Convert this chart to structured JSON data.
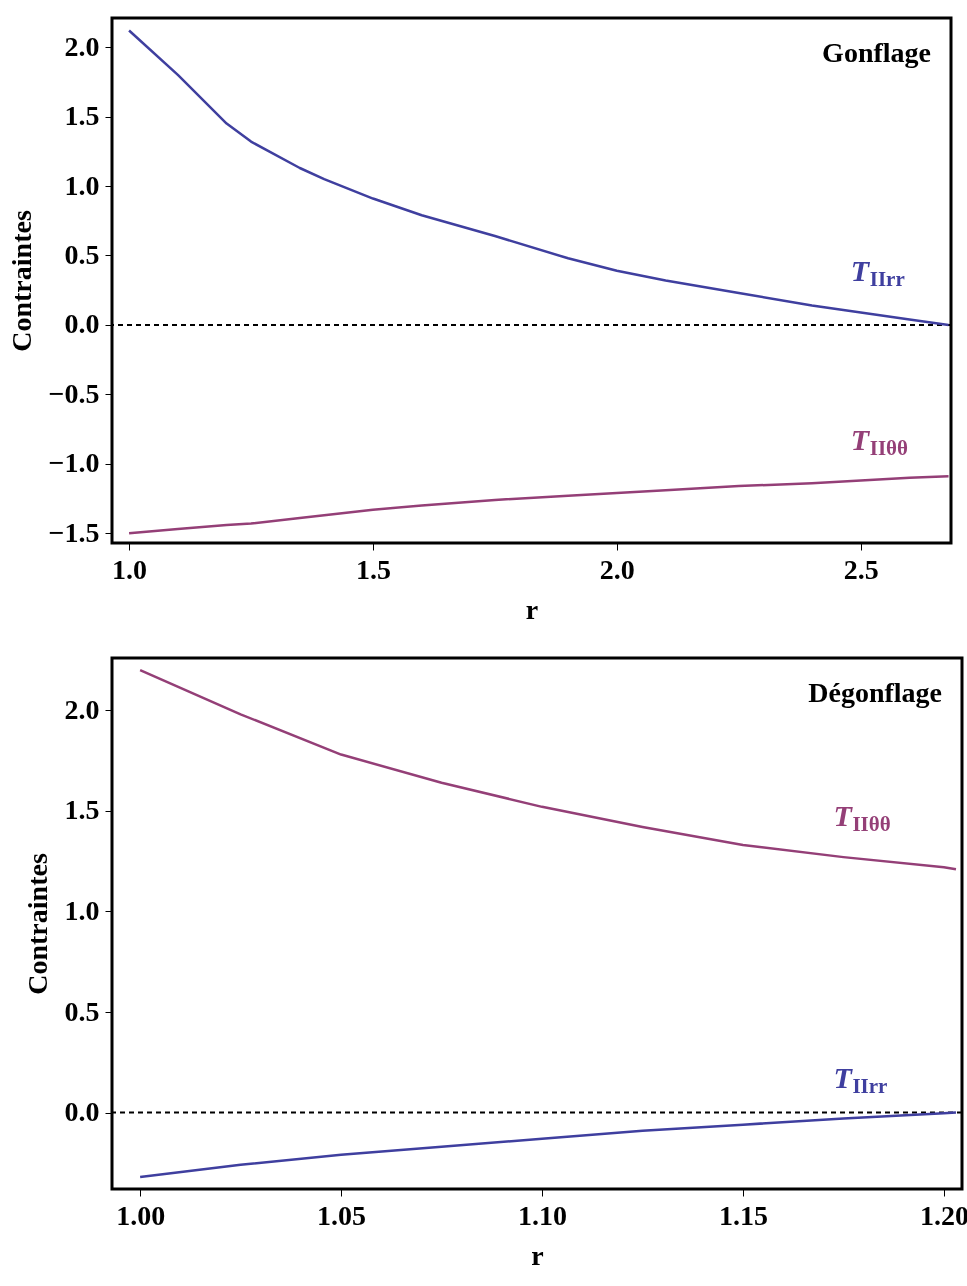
{
  "chart_data": [
    {
      "type": "line",
      "xlabel": "r",
      "ylabel": "Contraintes",
      "xlim": [
        0.965,
        2.685
      ],
      "ylim": [
        -1.57,
        2.21
      ],
      "xticks": [
        {
          "value": 1,
          "label": "1.0"
        },
        {
          "value": 1.5,
          "label": "1.5"
        },
        {
          "value": 2,
          "label": "2.0"
        },
        {
          "value": 2.5,
          "label": "2.5"
        }
      ],
      "yticks": [
        {
          "value": -1.5,
          "label": "−1.5"
        },
        {
          "value": -1,
          "label": "−1.0"
        },
        {
          "value": -0.5,
          "label": "−0.5"
        },
        {
          "value": 0,
          "label": "0.0"
        },
        {
          "value": 0.5,
          "label": "0.5"
        },
        {
          "value": 1,
          "label": "1.0"
        },
        {
          "value": 1.5,
          "label": "1.5"
        },
        {
          "value": 2,
          "label": "2.0"
        }
      ],
      "x": [
        1.0,
        1.1,
        1.2,
        1.25,
        1.35,
        1.4,
        1.5,
        1.6,
        1.75,
        1.9,
        2.0,
        2.1,
        2.25,
        2.4,
        2.5,
        2.6,
        2.68
      ],
      "series": [
        {
          "name": "T$_{IIrr}$",
          "color": "#3f3f9f",
          "values": [
            2.12,
            1.8,
            1.45,
            1.32,
            1.13,
            1.05,
            0.91,
            0.79,
            0.64,
            0.48,
            0.39,
            0.32,
            0.23,
            0.14,
            0.09,
            0.04,
            0.0
          ]
        },
        {
          "name": "T$_{IIθθ}$",
          "color": "#943f77",
          "values": [
            -1.5,
            -1.47,
            -1.44,
            -1.43,
            -1.39,
            -1.37,
            -1.33,
            -1.3,
            -1.26,
            -1.23,
            -1.21,
            -1.19,
            -1.16,
            -1.14,
            -1.12,
            -1.1,
            -1.09
          ]
        }
      ],
      "ref_lines": [
        {
          "axis": "y",
          "value": 0,
          "color": "#000000",
          "line_style": "dashed"
        }
      ],
      "annotations": [
        "Gonflage"
      ],
      "grid": false
    },
    {
      "type": "line",
      "xlabel": "r",
      "ylabel": "Contraintes",
      "xlim": [
        0.993,
        1.2045
      ],
      "ylim": [
        -0.38,
        2.26
      ],
      "xticks": [
        {
          "value": 1,
          "label": "1.00"
        },
        {
          "value": 1.05,
          "label": "1.05"
        },
        {
          "value": 1.1,
          "label": "1.10"
        },
        {
          "value": 1.15,
          "label": "1.15"
        },
        {
          "value": 1.2,
          "label": "1.20"
        }
      ],
      "yticks": [
        {
          "value": 0,
          "label": "0.0"
        },
        {
          "value": 0.5,
          "label": "0.5"
        },
        {
          "value": 1,
          "label": "1.0"
        },
        {
          "value": 1.5,
          "label": "1.5"
        },
        {
          "value": 2,
          "label": "2.0"
        }
      ],
      "x": [
        1.0,
        1.025,
        1.05,
        1.075,
        1.1,
        1.125,
        1.15,
        1.175,
        1.2,
        1.203
      ],
      "series": [
        {
          "name": "T$_{IIθθ}$",
          "color": "#943f77",
          "values": [
            2.2,
            1.98,
            1.78,
            1.64,
            1.52,
            1.42,
            1.33,
            1.27,
            1.22,
            1.21
          ]
        },
        {
          "name": "T$_{IIrr}$",
          "color": "#3f3f9f",
          "values": [
            -0.32,
            -0.26,
            -0.21,
            -0.17,
            -0.13,
            -0.09,
            -0.06,
            -0.03,
            -0.003,
            0.0
          ]
        }
      ],
      "ref_lines": [
        {
          "axis": "y",
          "value": 0,
          "color": "#000000",
          "line_style": "dashed"
        }
      ],
      "annotations": [
        "Dégonflage"
      ],
      "grid": false
    }
  ]
}
